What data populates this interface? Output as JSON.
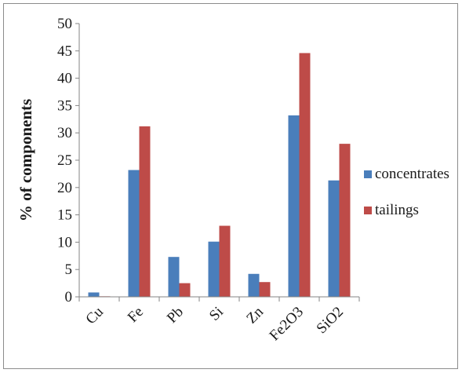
{
  "chart_data": {
    "type": "bar",
    "ylabel": "% of components",
    "xlabel": "",
    "title": "",
    "ylim": [
      0,
      50
    ],
    "ytick_step": 5,
    "categories": [
      "Cu",
      "Fe",
      "Pb",
      "Si",
      "Zn",
      "Fe2O3",
      "SiO2"
    ],
    "series": [
      {
        "name": "concentrates",
        "color": "#4a7ebb",
        "values": [
          0.8,
          23.2,
          7.3,
          10.1,
          4.2,
          33.2,
          21.3
        ]
      },
      {
        "name": "tailings",
        "color": "#be4b48",
        "values": [
          0.1,
          31.2,
          2.5,
          13.0,
          2.7,
          44.6,
          28.0
        ]
      }
    ],
    "legend": "right",
    "grid": false
  }
}
